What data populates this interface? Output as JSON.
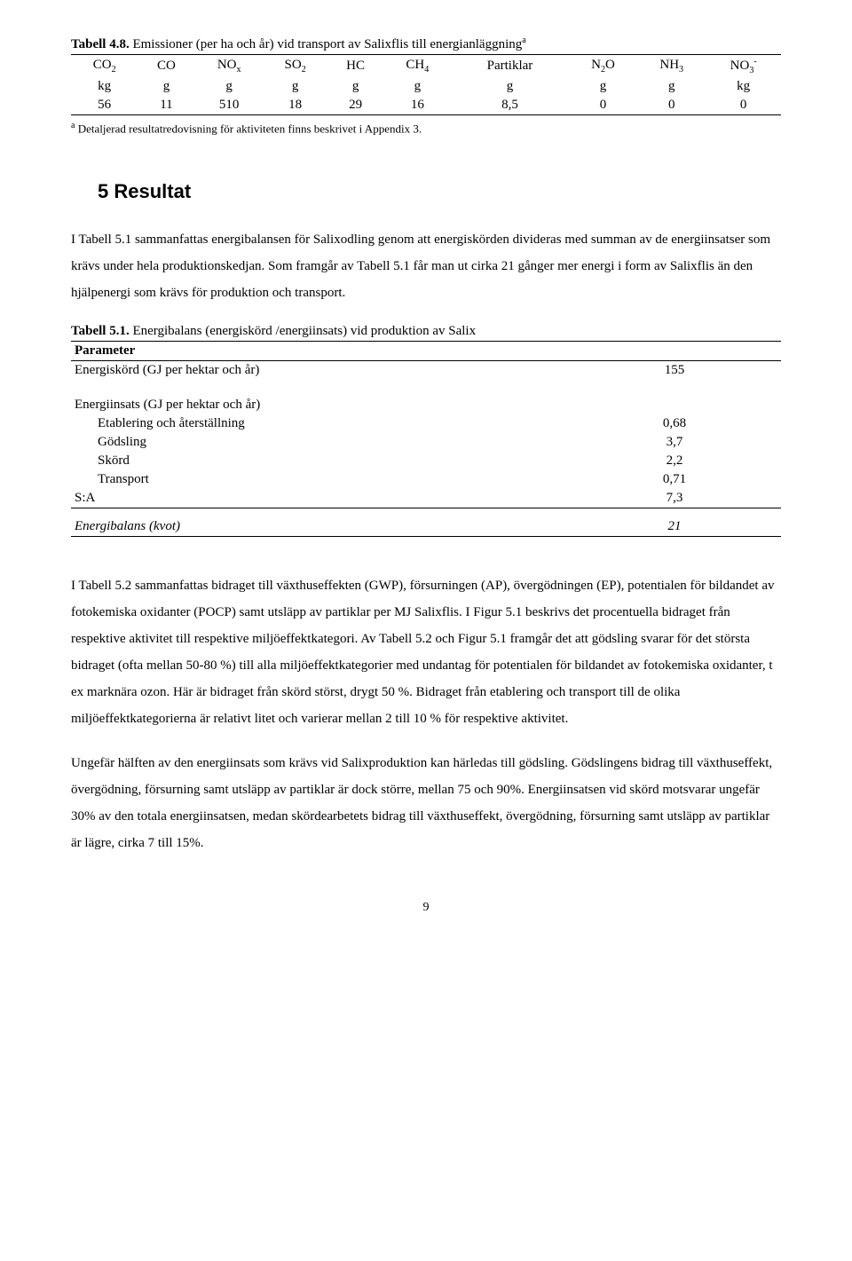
{
  "table48": {
    "caption_bold": "Tabell 4.8.",
    "caption_rest": " Emissioner (per ha och år) vid transport av Salixflis till energianläggning",
    "caption_sup": "a",
    "headers": [
      {
        "main": "CO",
        "sub": "2"
      },
      {
        "main": "CO",
        "sub": ""
      },
      {
        "main": "NO",
        "sub": "x"
      },
      {
        "main": "SO",
        "sub": "2"
      },
      {
        "main": "HC",
        "sub": ""
      },
      {
        "main": "CH",
        "sub": "4"
      },
      {
        "main": "Partiklar",
        "sub": ""
      },
      {
        "main": "N",
        "sub": "2",
        "post": "O"
      },
      {
        "main": "NH",
        "sub": "3"
      },
      {
        "main": "NO",
        "sub": "3",
        "sup": "-"
      }
    ],
    "units": [
      "kg",
      "g",
      "g",
      "g",
      "g",
      "g",
      "g",
      "g",
      "g",
      "kg"
    ],
    "values": [
      "56",
      "11",
      "510",
      "18",
      "29",
      "16",
      "8,5",
      "0",
      "0",
      "0"
    ],
    "footnote_sup": "a",
    "footnote": " Detaljerad resultatredovisning för aktiviteten finns beskrivet i Appendix 3."
  },
  "section5": {
    "title": "5  Resultat",
    "para1": "I Tabell 5.1 sammanfattas energibalansen för Salixodling genom att energiskörden divideras med summan av de energiinsatser som krävs under hela produktionskedjan. Som framgår av Tabell 5.1 får man ut cirka 21 gånger mer energi i form av Salixflis än den hjälpenergi som krävs för produktion och transport."
  },
  "table51": {
    "caption_bold": "Tabell 5.1.",
    "caption_rest": " Energibalans (energiskörd /energiinsats) vid produktion av Salix",
    "param_label": "Parameter",
    "row_harvest": {
      "label": "Energiskörd (GJ per hektar och år)",
      "val": "155"
    },
    "group_label": "Energiinsats (GJ per hektar och år)",
    "rows": [
      {
        "label": "Etablering och återställning",
        "val": "0,68"
      },
      {
        "label": "Gödsling",
        "val": "3,7"
      },
      {
        "label": "Skörd",
        "val": "2,2"
      },
      {
        "label": "Transport",
        "val": "0,71"
      }
    ],
    "sum": {
      "label": "S:A",
      "val": "7,3"
    },
    "balance": {
      "label": "Energibalans (kvot)",
      "val": "21"
    }
  },
  "para2": "I Tabell 5.2 sammanfattas bidraget till växthuseffekten (GWP), försurningen (AP), övergödningen (EP), potentialen för bildandet av fotokemiska oxidanter (POCP) samt utsläpp av partiklar per MJ Salixflis. I Figur 5.1 beskrivs det procentuella bidraget från respektive aktivitet till respektive miljöeffektkategori. Av Tabell 5.2 och Figur 5.1 framgår det att gödsling svarar för det största bidraget (ofta mellan 50-80 %) till alla miljöeffektkategorier med undantag för potentialen för bildandet av fotokemiska oxidanter, t ex marknära ozon. Här är bidraget från skörd störst, drygt 50 %. Bidraget från etablering och transport till de olika miljöeffektkategorierna är relativt litet och varierar mellan 2 till 10 % för respektive aktivitet.",
  "para3": "Ungefär hälften av den energiinsats som krävs vid Salixproduktion kan härledas till gödsling. Gödslingens bidrag till växthuseffekt, övergödning, försurning samt utsläpp av partiklar är dock större, mellan 75 och 90%. Energiinsatsen vid skörd motsvarar ungefär 30% av den totala energiinsatsen, medan skördearbetets bidrag till växthuseffekt, övergödning, försurning samt utsläpp av partiklar är lägre, cirka 7 till 15%.",
  "page_number": "9"
}
